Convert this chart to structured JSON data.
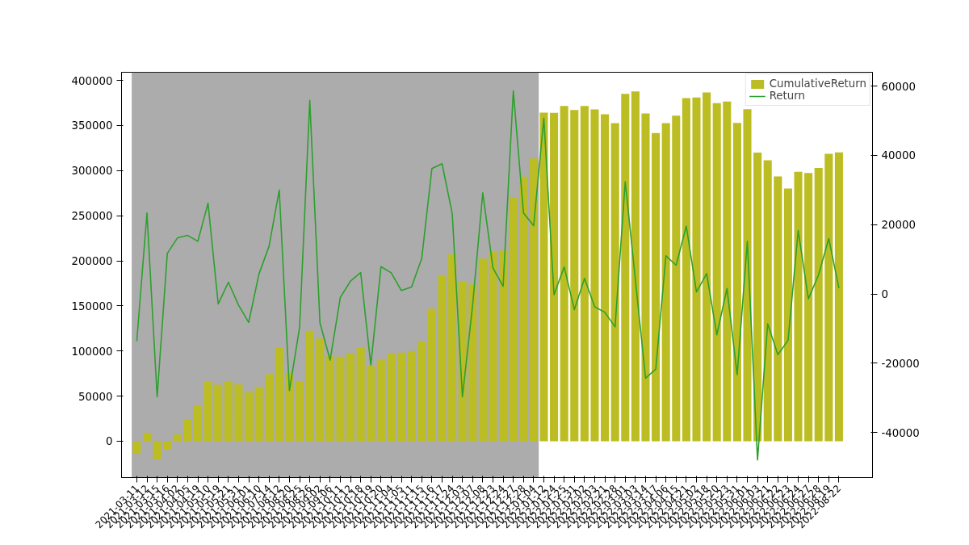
{
  "chart_data": {
    "type": "bar",
    "categories": [
      "2021-03-11",
      "2021-03-12",
      "2021-03-15",
      "2021-03-16",
      "2021-04-02",
      "2021-04-05",
      "2021-04-19",
      "2021-05-10",
      "2021-05-19",
      "2021-05-21",
      "2021-05-31",
      "2021-06-01",
      "2021-06-10",
      "2021-07-14",
      "2021-08-12",
      "2021-08-20",
      "2021-08-25",
      "2021-08-26",
      "2021-09-02",
      "2021-09-06",
      "2021-10-11",
      "2021-10-12",
      "2021-10-18",
      "2021-10-19",
      "2021-10-20",
      "2021-11-04",
      "2021-11-05",
      "2021-11-11",
      "2021-11-15",
      "2021-11-16",
      "2021-11-17",
      "2021-11-24",
      "2021-12-03",
      "2021-12-07",
      "2021-12-08",
      "2021-12-23",
      "2021-12-24",
      "2021-12-27",
      "2021-12-28",
      "2022-01-04",
      "2022-01-12",
      "2022-01-24",
      "2022-01-25",
      "2022-01-31",
      "2022-02-02",
      "2022-02-03",
      "2022-02-21",
      "2022-02-28",
      "2022-03-01",
      "2022-03-03",
      "2022-03-14",
      "2022-03-17",
      "2022-04-06",
      "2022-04-15",
      "2022-04-21",
      "2022-05-02",
      "2022-05-18",
      "2022-05-20",
      "2022-05-23",
      "2022-05-31",
      "2022-06-01",
      "2022-06-03",
      "2022-06-21",
      "2022-06-22",
      "2022-06-23",
      "2022-06-24",
      "2022-06-27",
      "2022-06-28",
      "2022-08-19",
      "2022-08-22"
    ],
    "series": [
      {
        "name": "CumulativeReturn",
        "color": "#bcbd22",
        "values": [
          -13600,
          9300,
          -19900,
          -8600,
          7400,
          24500,
          39500,
          65800,
          62600,
          65800,
          63000,
          54500,
          60100,
          74300,
          104200,
          75900,
          66100,
          122300,
          113800,
          94700,
          93800,
          97200,
          103800,
          83400,
          90900,
          97200,
          98200,
          100100,
          110400,
          146900,
          184200,
          207100,
          177600,
          173800,
          202400,
          209900,
          211500,
          270500,
          293400,
          313500,
          364100,
          364000,
          371700,
          367200,
          371700,
          367800,
          362400,
          352600,
          385100,
          387800,
          363300,
          341600,
          352600,
          360900,
          380400,
          381000,
          386600,
          374700,
          376500,
          352900,
          368100,
          319800,
          311400,
          293500,
          280100,
          298600,
          297400,
          302800,
          318600,
          320100
        ]
      },
      {
        "name": "Return",
        "type": "line",
        "axis": "y2",
        "color": "#2ca02c",
        "values": [
          -13600,
          23400,
          -29700,
          11700,
          16200,
          16900,
          15200,
          26200,
          -2900,
          3400,
          -3200,
          -8200,
          5700,
          13800,
          30000,
          -27900,
          -9600,
          55900,
          -8300,
          -19100,
          -1000,
          3700,
          6200,
          -20500,
          7900,
          6100,
          1000,
          2000,
          10200,
          36200,
          37600,
          23200,
          -29700,
          -3300,
          29200,
          7500,
          2200,
          58600,
          23400,
          19700,
          50700,
          -200,
          7800,
          -4500,
          4500,
          -3700,
          -5300,
          -9500,
          32400,
          4000,
          -24300,
          -21700,
          11000,
          8300,
          19600,
          600,
          5900,
          -11800,
          1600,
          -23300,
          15200,
          -47900,
          -8600,
          -17500,
          -13400,
          18300,
          -1400,
          5500,
          16000,
          1700
        ]
      }
    ],
    "ylim": [
      -40270,
      408950
    ],
    "yticks": [
      0,
      50000,
      100000,
      150000,
      200000,
      250000,
      300000,
      350000,
      400000
    ],
    "y2lim": [
      -53000,
      64000
    ],
    "y2ticks": [
      -40000,
      -20000,
      0,
      20000,
      40000,
      60000
    ],
    "bands": [
      {
        "axis": "x",
        "from": "2021-03-11",
        "to": "2022-01-04",
        "color": "#959595"
      }
    ],
    "legend": "top right",
    "grid": false
  }
}
